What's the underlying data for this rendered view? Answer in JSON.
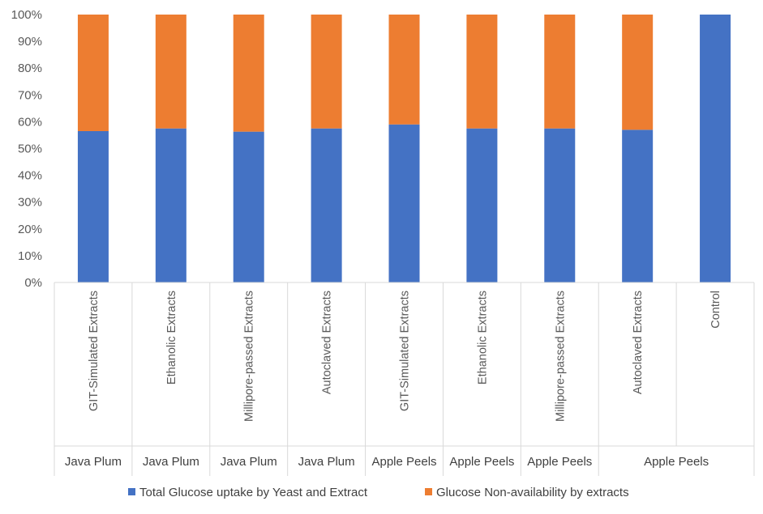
{
  "chart_data": {
    "type": "bar",
    "stacked": true,
    "percent_stacked": true,
    "categories": [
      "GIT-Simulated Extracts",
      "Ethanolic Extracts",
      "Millipore-passed Extracts",
      "Autoclaved Extracts",
      "GIT-Simulated Extracts",
      "Ethanolic Extracts",
      "Millipore-passed Extracts",
      "Autoclaved Extracts",
      "Control"
    ],
    "groups": [
      {
        "label": "Java Plum",
        "span": 1
      },
      {
        "label": "Java Plum",
        "span": 1
      },
      {
        "label": "Java Plum",
        "span": 1
      },
      {
        "label": "Java Plum",
        "span": 1
      },
      {
        "label": "Apple Peels",
        "span": 1
      },
      {
        "label": "Apple Peels",
        "span": 1
      },
      {
        "label": "Apple Peels",
        "span": 1
      },
      {
        "label": "Apple Peels",
        "span": 2
      }
    ],
    "series": [
      {
        "name": "Total Glucose uptake by Yeast and Extract",
        "color": "#4472C4",
        "values": [
          56.5,
          57.5,
          56.3,
          57.5,
          59.0,
          57.5,
          57.5,
          57.0,
          100
        ]
      },
      {
        "name": "Glucose Non-availability by extracts",
        "color": "#ED7D31",
        "values": [
          43.5,
          42.5,
          43.7,
          42.5,
          41.0,
          42.5,
          42.5,
          43.0,
          0
        ]
      }
    ],
    "yticks": [
      "0%",
      "10%",
      "20%",
      "30%",
      "40%",
      "50%",
      "60%",
      "70%",
      "80%",
      "90%",
      "100%"
    ],
    "ylim": [
      0,
      100
    ],
    "legend_position": "bottom",
    "grid": false,
    "axis_color": "#D9D9D9"
  }
}
